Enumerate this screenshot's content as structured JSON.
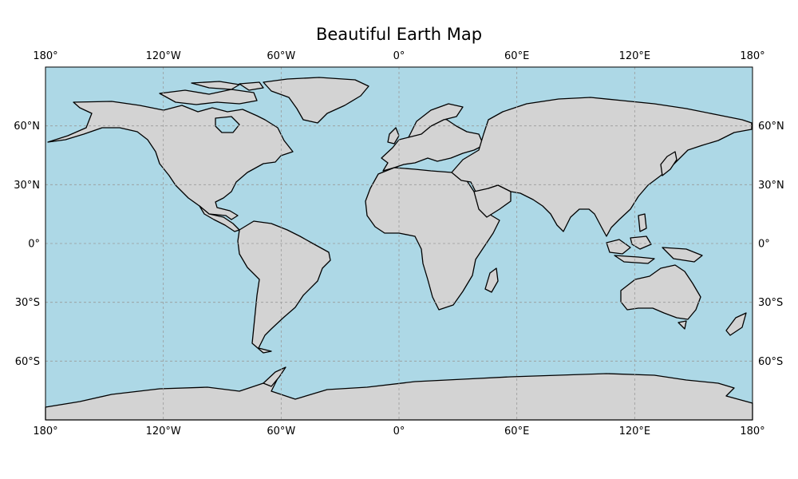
{
  "map": {
    "title": "Beautiful Earth Map",
    "projection": "PlateCarree",
    "ocean_color": "#add8e6",
    "land_color": "#d3d3d3",
    "coastline_color": "#000000",
    "grid": true,
    "grid_style": "dashed",
    "lon_range": [
      -180,
      180
    ],
    "lat_range": [
      -90,
      90
    ],
    "lon_ticks": [
      {
        "value": -180,
        "label": "180°"
      },
      {
        "value": -120,
        "label": "120°W"
      },
      {
        "value": -60,
        "label": "60°W"
      },
      {
        "value": 0,
        "label": "0°"
      },
      {
        "value": 60,
        "label": "60°E"
      },
      {
        "value": 120,
        "label": "120°E"
      },
      {
        "value": 180,
        "label": "180°"
      }
    ],
    "lat_ticks": [
      {
        "value": 60,
        "label": "60°N"
      },
      {
        "value": 30,
        "label": "30°N"
      },
      {
        "value": 0,
        "label": "0°"
      },
      {
        "value": -30,
        "label": "30°S"
      },
      {
        "value": -60,
        "label": "60°S"
      }
    ]
  }
}
